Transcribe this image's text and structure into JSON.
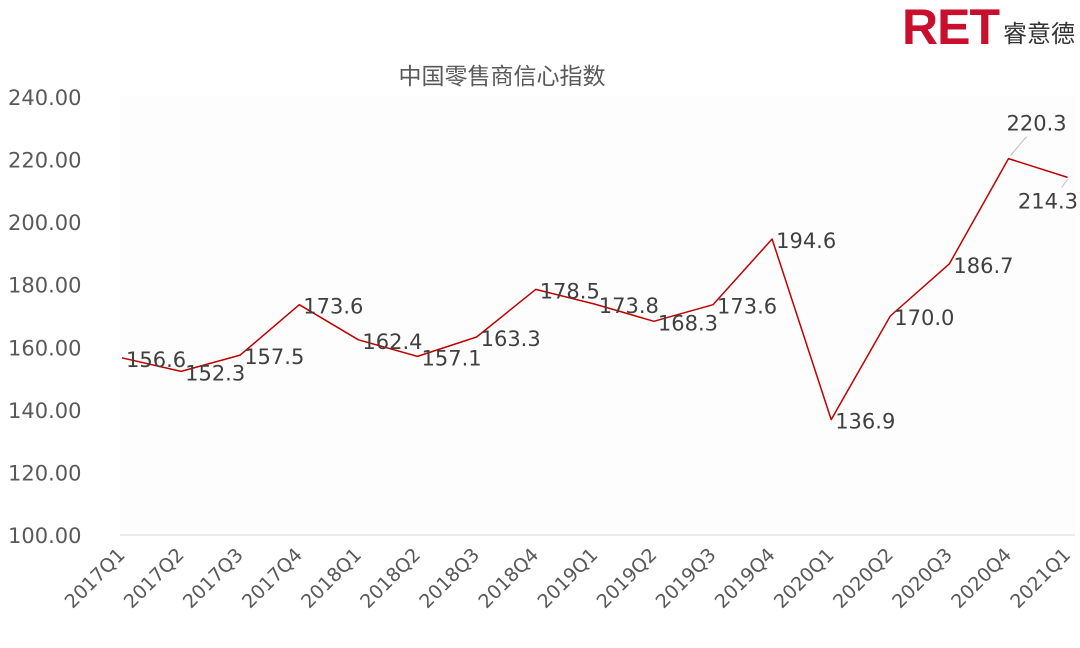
{
  "brand": {
    "mark": "RET",
    "name": "睿意德",
    "color": "#c8102e"
  },
  "chart_data": {
    "type": "line",
    "title": "中国零售商信心指数",
    "xlabel": "",
    "ylabel": "",
    "categories": [
      "2017Q1",
      "2017Q2",
      "2017Q3",
      "2017Q4",
      "2018Q1",
      "2018Q2",
      "2018Q3",
      "2018Q4",
      "2019Q1",
      "2019Q2",
      "2019Q3",
      "2019Q4",
      "2020Q1",
      "2020Q2",
      "2020Q3",
      "2020Q4",
      "2021Q1"
    ],
    "series": [
      {
        "values": [
          156.6,
          152.3,
          157.5,
          173.6,
          162.4,
          157.1,
          163.3,
          178.5,
          173.8,
          168.3,
          173.6,
          194.6,
          136.9,
          170.0,
          186.7,
          220.3,
          214.3
        ],
        "labels": [
          "156.6",
          "152.3",
          "157.5",
          "173.6",
          "162.4",
          "157.1",
          "163.3",
          "178.5",
          "173.8",
          "168.3",
          "173.6",
          "194.6",
          "136.9",
          "170.0",
          "186.7",
          "220.3",
          "214.3"
        ],
        "color": "#c00000"
      }
    ],
    "ylim": [
      100,
      240
    ],
    "yticks": [
      100,
      120,
      140,
      160,
      180,
      200,
      220,
      240
    ],
    "ytick_labels": [
      "100.00",
      "120.00",
      "140.00",
      "160.00",
      "180.00",
      "200.00",
      "220.00",
      "240.00"
    ],
    "grid": false,
    "legend": "none"
  }
}
